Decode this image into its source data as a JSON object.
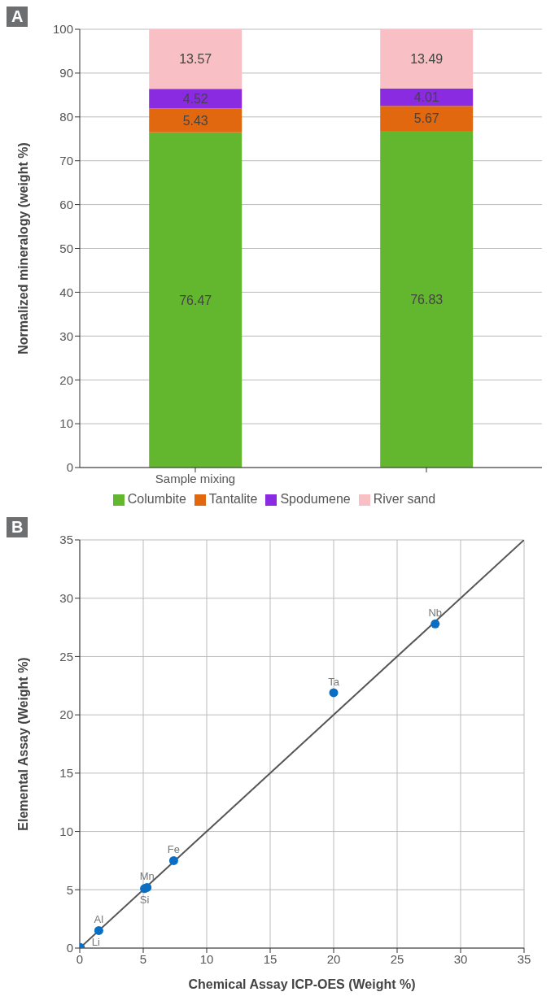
{
  "chart_data": [
    {
      "type": "bar",
      "stacked": true,
      "annotations": [
        "A"
      ],
      "ylabel": "Normalized mineralogy (weight %)",
      "categories": [
        "Sample mixing",
        null
      ],
      "ylim": [
        0,
        100
      ],
      "yticks": [
        0,
        10,
        20,
        30,
        40,
        50,
        60,
        70,
        80,
        90,
        100
      ],
      "grid": "y",
      "legend": "bottom",
      "data_labels": true,
      "series": [
        {
          "name": "Columbite",
          "color": "#62b72f",
          "values": [
            76.47,
            76.83
          ]
        },
        {
          "name": "Tantalite",
          "color": "#e2680f",
          "values": [
            5.43,
            5.67
          ]
        },
        {
          "name": "Spodumene",
          "color": "#8a2be2",
          "values": [
            4.52,
            4.01
          ]
        },
        {
          "name": "River sand",
          "color": "#f8c0c4",
          "values": [
            13.57,
            13.49
          ]
        }
      ]
    },
    {
      "type": "scatter",
      "annotations": [
        "B",
        {
          "text": "Li",
          "x": 0.05,
          "y": 0.05
        },
        {
          "text": "Al",
          "x": 1.5,
          "y": 1.5
        },
        {
          "text": "Si",
          "x": 5.1,
          "y": 5.1
        },
        {
          "text": "Mn",
          "x": 5.3,
          "y": 5.2
        },
        {
          "text": "Fe",
          "x": 7.4,
          "y": 7.5
        },
        {
          "text": "Ta",
          "x": 20,
          "y": 21.9
        },
        {
          "text": "Nb",
          "x": 28,
          "y": 27.8
        }
      ],
      "xlabel": "Chemical Assay ICP-OES (Weight %)",
      "ylabel": "Elemental Assay (Weight %)",
      "xlim": [
        0,
        35
      ],
      "xticks": [
        0,
        5,
        10,
        15,
        20,
        25,
        30,
        35
      ],
      "ylim": [
        0,
        35
      ],
      "yticks": [
        0,
        5,
        10,
        15,
        20,
        25,
        30,
        35
      ],
      "grid": true,
      "marker": "circle",
      "series": [
        {
          "type": "line",
          "color": "#555555",
          "marker": "none",
          "x": [
            0,
            35
          ],
          "values": [
            0,
            35
          ]
        },
        {
          "color": "#0a6fc2",
          "x": [
            0.05,
            1.5,
            5.1,
            5.3,
            7.4,
            20,
            28
          ],
          "values": [
            0.05,
            1.5,
            5.1,
            5.2,
            7.5,
            21.9,
            27.8
          ]
        }
      ]
    }
  ]
}
